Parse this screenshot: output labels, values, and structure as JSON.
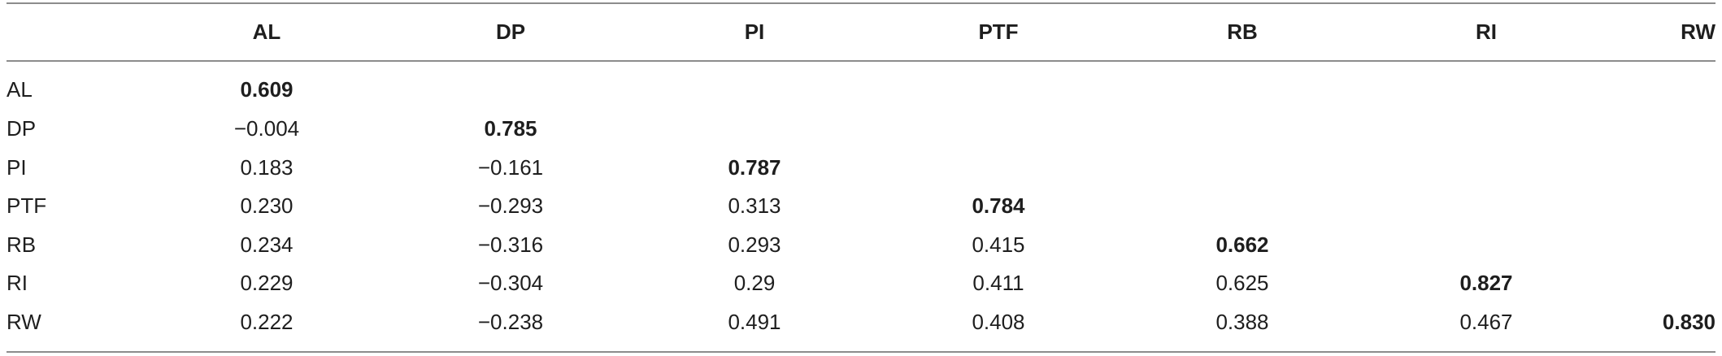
{
  "table": {
    "columns": [
      "",
      "AL",
      "DP",
      "PI",
      "PTF",
      "RB",
      "RI",
      "RW"
    ],
    "rows": [
      {
        "label": "AL",
        "cells": [
          "0.609",
          "",
          "",
          "",
          "",
          "",
          ""
        ]
      },
      {
        "label": "DP",
        "cells": [
          "−0.004",
          "0.785",
          "",
          "",
          "",
          "",
          ""
        ]
      },
      {
        "label": "PI",
        "cells": [
          "0.183",
          "−0.161",
          "0.787",
          "",
          "",
          "",
          ""
        ]
      },
      {
        "label": "PTF",
        "cells": [
          "0.230",
          "−0.293",
          "0.313",
          "0.784",
          "",
          "",
          ""
        ]
      },
      {
        "label": "RB",
        "cells": [
          "0.234",
          "−0.316",
          "0.293",
          "0.415",
          "0.662",
          "",
          ""
        ]
      },
      {
        "label": "RI",
        "cells": [
          "0.229",
          "−0.304",
          "0.29",
          "0.411",
          "0.625",
          "0.827",
          ""
        ]
      },
      {
        "label": "RW",
        "cells": [
          "0.222",
          "−0.238",
          "0.491",
          "0.408",
          "0.388",
          "0.467",
          "0.830"
        ]
      }
    ],
    "bold_diagonal": true
  }
}
